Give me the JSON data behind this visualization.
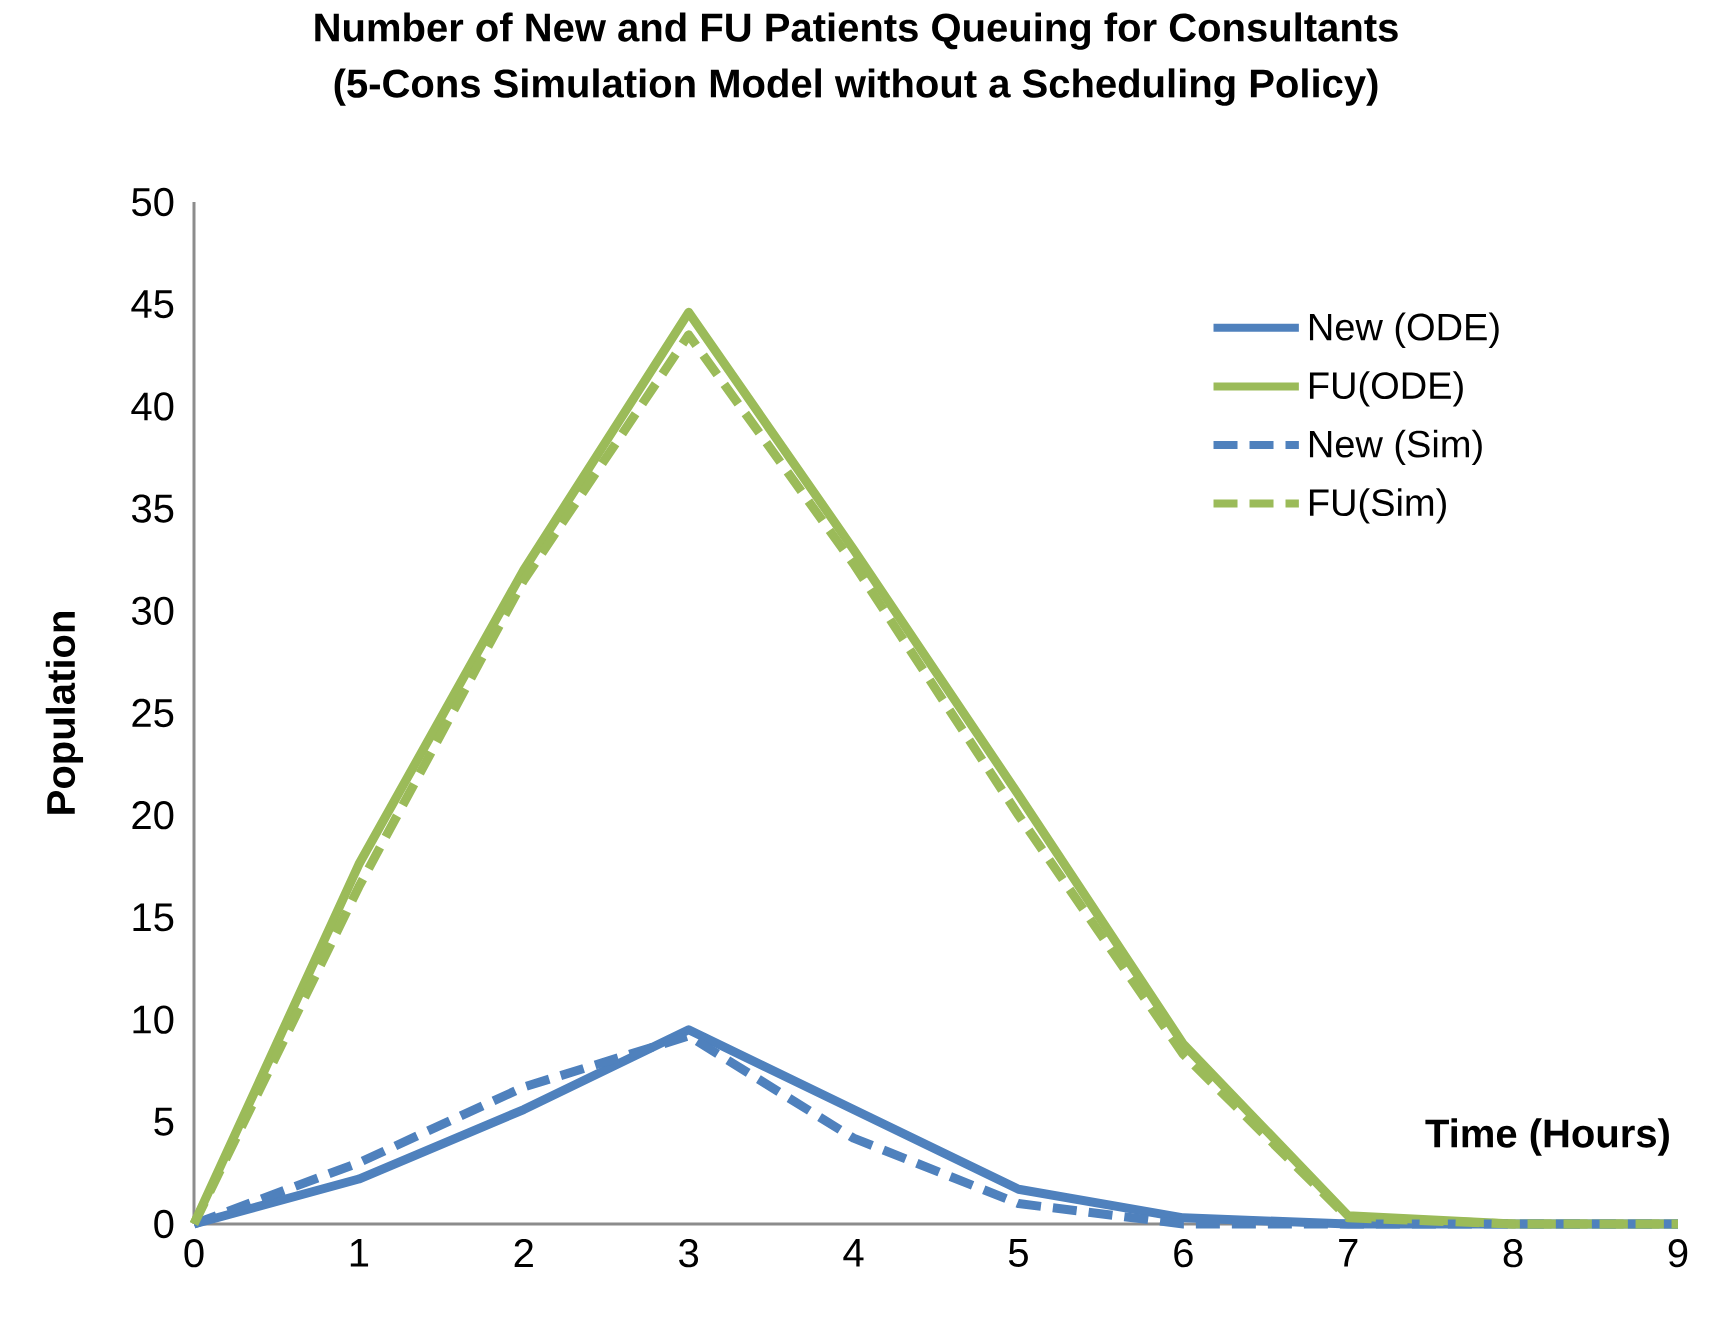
{
  "chart_data": {
    "type": "line",
    "title": "Number of New and FU Patients Queuing for Consultants\n(5-Cons Simulation Model without a Scheduling Policy)",
    "xlabel": "Time (Hours)",
    "ylabel": "Population",
    "x": [
      0,
      1,
      2,
      3,
      4,
      5,
      6,
      7,
      8,
      9
    ],
    "series": [
      {
        "name": "New (ODE)",
        "color": "#4f81bd",
        "line_style": "solid",
        "values": [
          0,
          2.2,
          5.6,
          9.5,
          5.6,
          1.7,
          0.3,
          0,
          0,
          0
        ]
      },
      {
        "name": "FU(ODE)",
        "color": "#9bbb59",
        "line_style": "solid",
        "values": [
          0,
          17.6,
          32,
          44.6,
          33,
          21,
          8.8,
          0.4,
          0,
          0
        ]
      },
      {
        "name": "New (Sim)",
        "color": "#4f81bd",
        "line_style": "dashed",
        "values": [
          0,
          3,
          6.7,
          9.2,
          4.2,
          1.0,
          0,
          0,
          0,
          0
        ]
      },
      {
        "name": "FU(Sim)",
        "color": "#9bbb59",
        "line_style": "dashed",
        "values": [
          0,
          16.5,
          31.5,
          43.5,
          32.3,
          20,
          8.3,
          0.3,
          0,
          0
        ]
      }
    ],
    "xlim": [
      0,
      9
    ],
    "xticks": [
      0,
      1,
      2,
      3,
      4,
      5,
      6,
      7,
      8,
      9
    ],
    "ylim": [
      0,
      50
    ],
    "yticks": [
      0,
      5,
      10,
      15,
      20,
      25,
      30,
      35,
      40,
      45,
      50
    ],
    "grid": false,
    "legend": "top right",
    "marker": "none"
  }
}
